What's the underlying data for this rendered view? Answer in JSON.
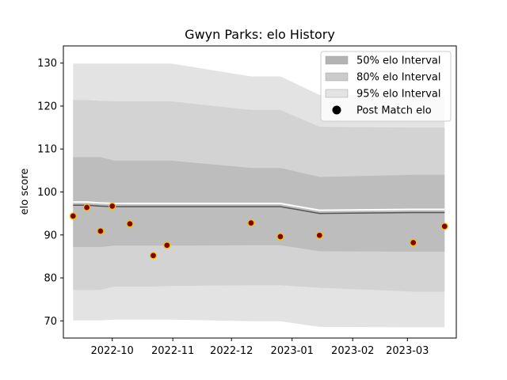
{
  "chart_data": {
    "type": "scatter",
    "title": "Gwyn Parks: elo History",
    "xlabel": "",
    "ylabel": "elo score",
    "x_type": "date",
    "xlim": [
      "2022-09-06",
      "2023-03-26"
    ],
    "ylim": [
      66,
      134
    ],
    "yticks": [
      70,
      80,
      90,
      100,
      110,
      120,
      130
    ],
    "xticks": [
      "2022-10-01",
      "2022-11-01",
      "2022-12-01",
      "2023-01-01",
      "2023-02-01",
      "2023-03-01"
    ],
    "xtick_labels": [
      "2022-10",
      "2022-11",
      "2022-12",
      "2023-01",
      "2023-02",
      "2023-03"
    ],
    "grid": false,
    "legend_position": "top-right",
    "legend": [
      {
        "label": "50% elo Interval",
        "kind": "band",
        "color": "#b3b3b3"
      },
      {
        "label": "80% elo Interval",
        "kind": "band",
        "color": "#cbcbcb"
      },
      {
        "label": "95% elo Interval",
        "kind": "band",
        "color": "#e3e3e3"
      },
      {
        "label": "Post Match elo",
        "kind": "marker",
        "color": "#000000"
      }
    ],
    "bands_x": [
      "2022-09-11",
      "2022-09-18",
      "2022-09-25",
      "2022-10-02",
      "2022-10-09",
      "2022-10-22",
      "2022-10-31",
      "2022-12-11",
      "2022-12-26",
      "2023-01-15",
      "2023-03-04",
      "2023-03-20"
    ],
    "mean": [
      96.9,
      96.9,
      96.7,
      96.6,
      96.6,
      96.6,
      96.6,
      96.6,
      96.6,
      95.0,
      95.2,
      95.2
    ],
    "band_95": {
      "lower": [
        70.1,
        70.1,
        70.1,
        70.3,
        70.3,
        70.3,
        70.3,
        69.9,
        69.9,
        68.6,
        68.5,
        68.5
      ],
      "upper": [
        129.9,
        129.9,
        129.9,
        129.9,
        129.9,
        129.9,
        129.9,
        126.9,
        126.9,
        122.6,
        122.4,
        122.4
      ]
    },
    "band_80": {
      "lower": [
        77.2,
        77.2,
        77.2,
        78.0,
        78.0,
        78.0,
        78.1,
        78.3,
        78.3,
        77.7,
        76.8,
        76.8
      ],
      "upper": [
        121.4,
        121.4,
        121.2,
        121.1,
        121.1,
        121.1,
        121.1,
        119.1,
        119.1,
        115.2,
        115.0,
        115.0
      ]
    },
    "band_50": {
      "lower": [
        87.2,
        87.2,
        87.2,
        87.5,
        87.5,
        87.5,
        87.5,
        87.6,
        87.6,
        86.2,
        86.1,
        86.1
      ],
      "upper": [
        108.1,
        108.1,
        108.1,
        107.3,
        107.3,
        107.3,
        107.3,
        105.6,
        105.6,
        103.5,
        104.0,
        104.0
      ]
    },
    "points": [
      {
        "x": "2022-09-11",
        "y": 94.4
      },
      {
        "x": "2022-09-18",
        "y": 96.4
      },
      {
        "x": "2022-09-25",
        "y": 90.9
      },
      {
        "x": "2022-10-01",
        "y": 96.7
      },
      {
        "x": "2022-10-10",
        "y": 92.6
      },
      {
        "x": "2022-10-22",
        "y": 85.2
      },
      {
        "x": "2022-10-29",
        "y": 87.6
      },
      {
        "x": "2022-12-11",
        "y": 92.8
      },
      {
        "x": "2022-12-26",
        "y": 89.6
      },
      {
        "x": "2023-01-15",
        "y": 89.9
      },
      {
        "x": "2023-03-04",
        "y": 88.2
      },
      {
        "x": "2023-03-20",
        "y": 92.0
      }
    ],
    "colors": {
      "band_50": "#bdbdbd",
      "band_80": "#d3d3d3",
      "band_95": "#e3e3e3",
      "mean_line": "#ffffff",
      "trend_line": "#555555",
      "marker_fill": "#800000",
      "marker_edge": "#f2c200"
    }
  }
}
